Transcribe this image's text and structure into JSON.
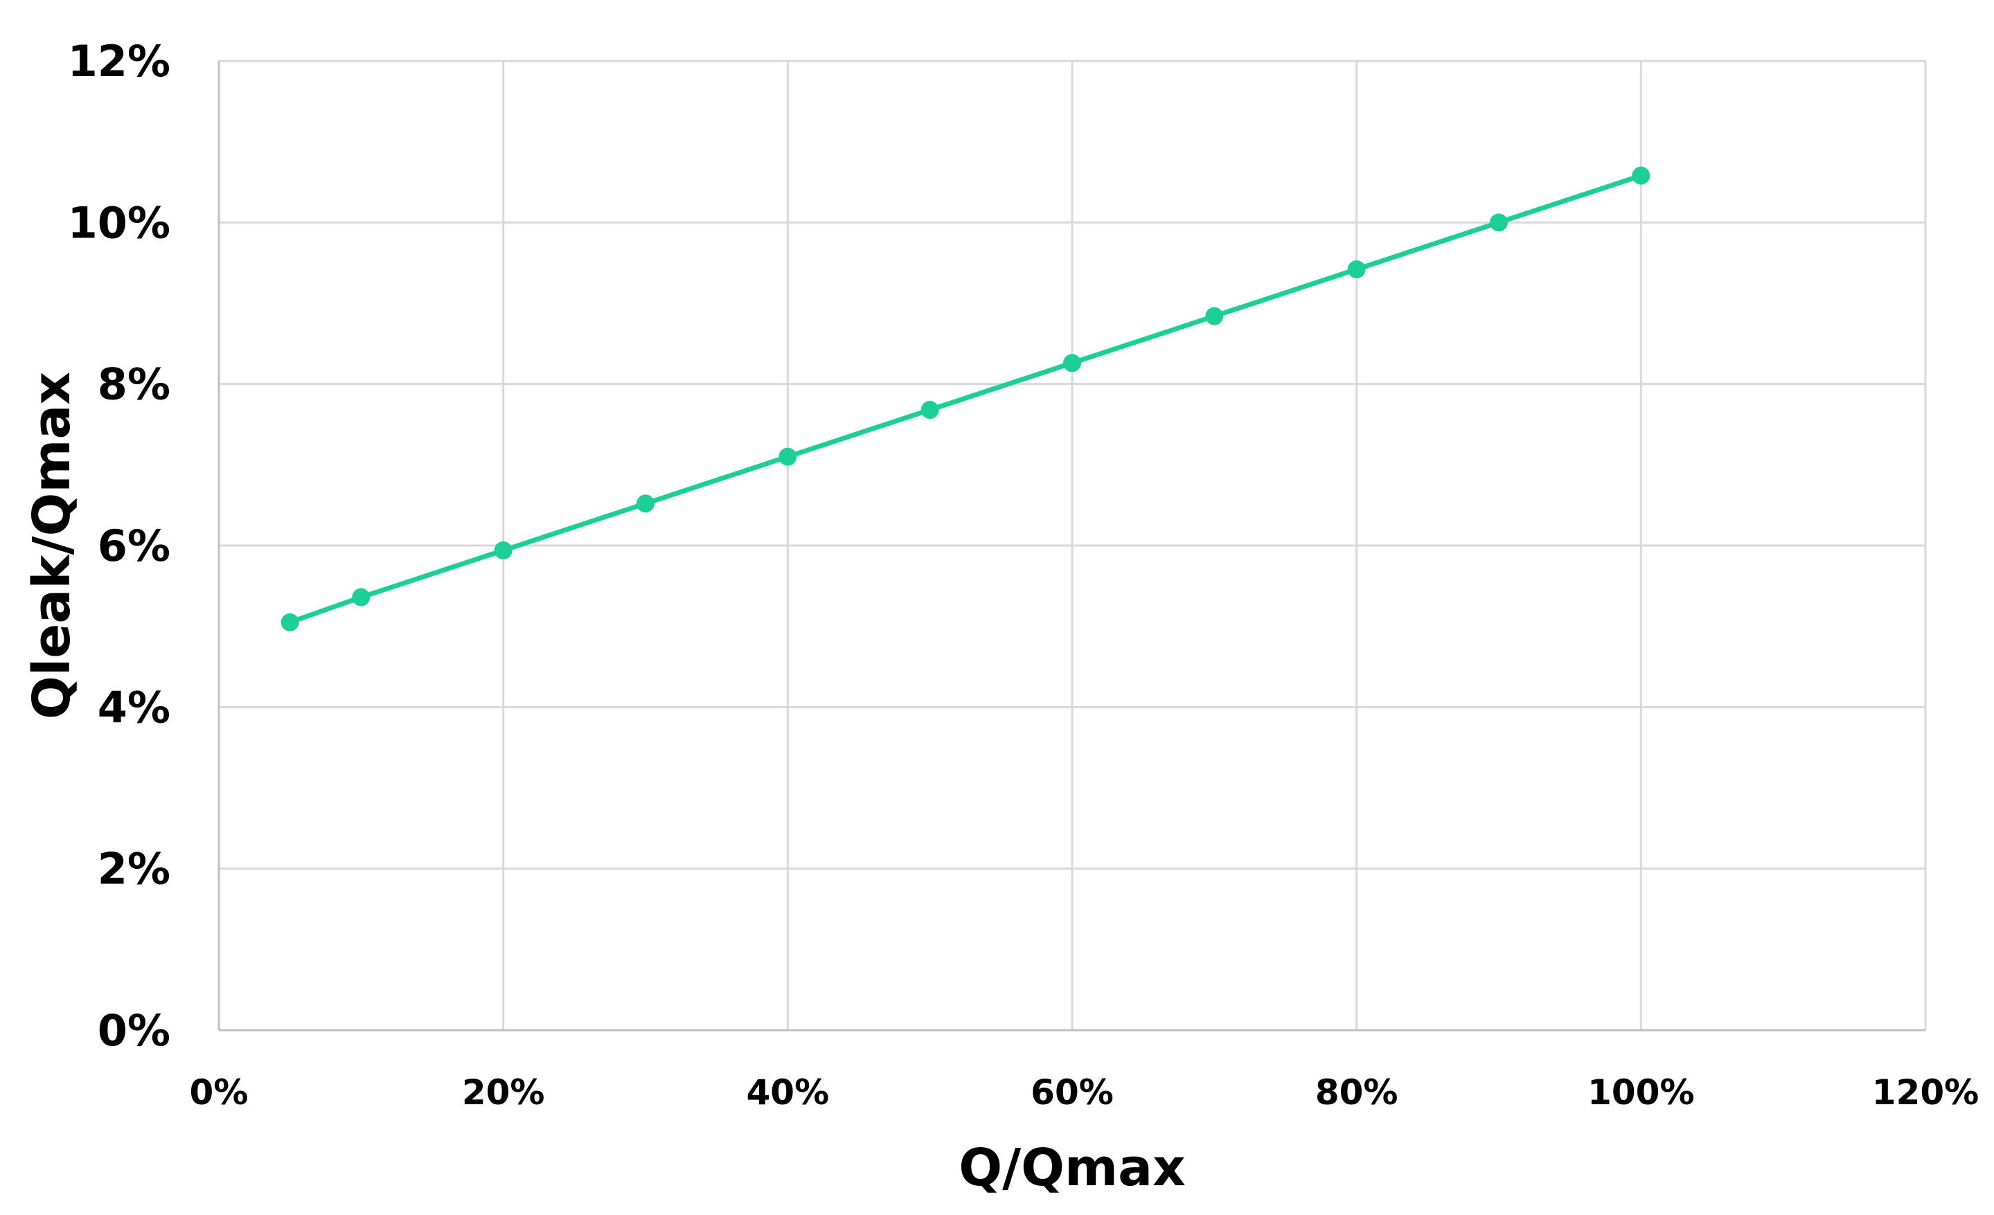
{
  "chart_data": {
    "type": "line",
    "title": "",
    "xlabel": "Q/Qmax",
    "ylabel": "Qleak/Qmax",
    "xlim": [
      0,
      1.2
    ],
    "ylim": [
      0,
      0.12
    ],
    "x_ticks": [
      0,
      0.2,
      0.4,
      0.6,
      0.8,
      1.0,
      1.2
    ],
    "x_tick_labels": [
      "0%",
      "20%",
      "40%",
      "60%",
      "80%",
      "100%",
      "120%"
    ],
    "y_ticks": [
      0,
      0.02,
      0.04,
      0.06,
      0.08,
      0.1,
      0.12
    ],
    "y_tick_labels": [
      "0%",
      "2%",
      "4%",
      "6%",
      "8%",
      "10%",
      "12%"
    ],
    "grid": true,
    "legend": "none",
    "series": [
      {
        "color": "#1ccf94",
        "x": [
          0.05,
          0.1,
          0.2,
          0.3,
          0.4,
          0.5,
          0.6,
          0.7,
          0.8,
          0.9,
          1.0
        ],
        "y": [
          0.0505,
          0.0536,
          0.0594,
          0.0652,
          0.071,
          0.0768,
          0.0826,
          0.0884,
          0.0942,
          0.1,
          0.1058
        ]
      }
    ]
  },
  "colors": {
    "grid": "#d9d9d9",
    "axis": "#bfbfbf",
    "text": "#000000"
  }
}
